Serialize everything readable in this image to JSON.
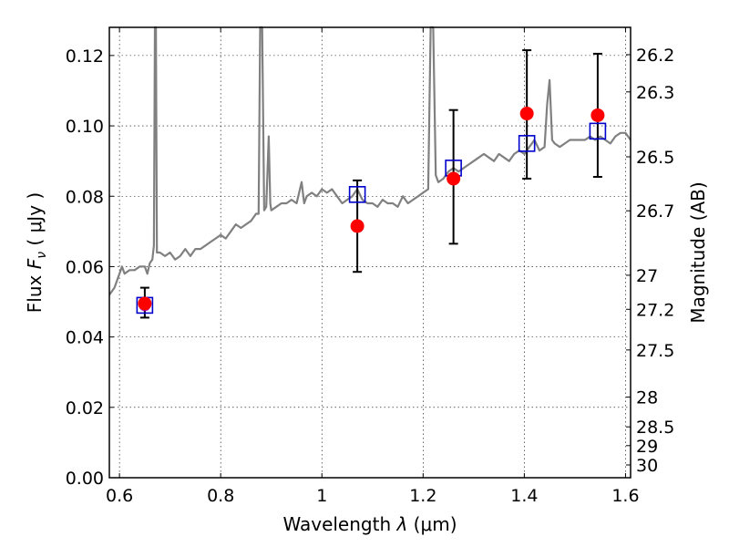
{
  "chart_data": {
    "type": "scatter",
    "title": "",
    "xlabel_prefix": "Wavelength  ",
    "xlabel_symbol": "λ",
    "xlabel_suffix": " (μm)",
    "ylabel_prefix": "Flux  ",
    "ylabel_symbol": "F",
    "ylabel_subscript": "ν",
    "ylabel_suffix": "  ( μJy )",
    "y2label": "Magnitude (AB)",
    "xlim": [
      0.58,
      1.61
    ],
    "ylim": [
      0.0,
      0.128
    ],
    "grid": true,
    "xticks": [
      {
        "value": 0.6,
        "label": "0.6"
      },
      {
        "value": 0.8,
        "label": "0.8"
      },
      {
        "value": 1.0,
        "label": "1"
      },
      {
        "value": 1.2,
        "label": "1.2"
      },
      {
        "value": 1.4,
        "label": "1.4"
      },
      {
        "value": 1.6,
        "label": "1.6"
      }
    ],
    "yticks": [
      {
        "value": 0.0,
        "label": "0.00"
      },
      {
        "value": 0.02,
        "label": "0.02"
      },
      {
        "value": 0.04,
        "label": "0.04"
      },
      {
        "value": 0.06,
        "label": "0.06"
      },
      {
        "value": 0.08,
        "label": "0.08"
      },
      {
        "value": 0.1,
        "label": "0.10"
      },
      {
        "value": 0.12,
        "label": "0.12"
      }
    ],
    "magnitude_ticks": [
      {
        "mag": 26.2,
        "label": "26.2"
      },
      {
        "mag": 26.3,
        "label": "26.3"
      },
      {
        "mag": 26.5,
        "label": "26.5"
      },
      {
        "mag": 26.7,
        "label": "26.7"
      },
      {
        "mag": 27.0,
        "label": "27"
      },
      {
        "mag": 27.2,
        "label": "27.2"
      },
      {
        "mag": 27.5,
        "label": "27.5"
      },
      {
        "mag": 28.0,
        "label": "28"
      },
      {
        "mag": 28.5,
        "label": "28.5"
      },
      {
        "mag": 29.0,
        "label": "29"
      },
      {
        "mag": 30.0,
        "label": "30"
      }
    ],
    "series": [
      {
        "kind": "line",
        "color": "#808080",
        "points": [
          [
            0.58,
            0.052
          ],
          [
            0.59,
            0.054
          ],
          [
            0.6,
            0.058
          ],
          [
            0.605,
            0.06
          ],
          [
            0.61,
            0.058
          ],
          [
            0.62,
            0.059
          ],
          [
            0.63,
            0.059
          ],
          [
            0.64,
            0.06
          ],
          [
            0.65,
            0.06
          ],
          [
            0.655,
            0.058
          ],
          [
            0.66,
            0.061
          ],
          [
            0.665,
            0.062
          ],
          [
            0.668,
            0.066
          ],
          [
            0.67,
            0.128
          ],
          [
            0.672,
            0.128
          ],
          [
            0.674,
            0.064
          ],
          [
            0.68,
            0.064
          ],
          [
            0.69,
            0.063
          ],
          [
            0.7,
            0.064
          ],
          [
            0.71,
            0.062
          ],
          [
            0.72,
            0.063
          ],
          [
            0.73,
            0.065
          ],
          [
            0.74,
            0.063
          ],
          [
            0.75,
            0.065
          ],
          [
            0.76,
            0.065
          ],
          [
            0.77,
            0.066
          ],
          [
            0.78,
            0.067
          ],
          [
            0.79,
            0.068
          ],
          [
            0.8,
            0.069
          ],
          [
            0.81,
            0.068
          ],
          [
            0.82,
            0.07
          ],
          [
            0.83,
            0.072
          ],
          [
            0.84,
            0.071
          ],
          [
            0.85,
            0.072
          ],
          [
            0.86,
            0.073
          ],
          [
            0.87,
            0.075
          ],
          [
            0.875,
            0.075
          ],
          [
            0.878,
            0.128
          ],
          [
            0.882,
            0.128
          ],
          [
            0.886,
            0.076
          ],
          [
            0.89,
            0.077
          ],
          [
            0.895,
            0.097
          ],
          [
            0.898,
            0.078
          ],
          [
            0.9,
            0.076
          ],
          [
            0.91,
            0.077
          ],
          [
            0.92,
            0.078
          ],
          [
            0.93,
            0.078
          ],
          [
            0.94,
            0.079
          ],
          [
            0.95,
            0.078
          ],
          [
            0.96,
            0.084
          ],
          [
            0.965,
            0.078
          ],
          [
            0.97,
            0.08
          ],
          [
            0.98,
            0.081
          ],
          [
            0.99,
            0.08
          ],
          [
            1.0,
            0.082
          ],
          [
            1.01,
            0.081
          ],
          [
            1.02,
            0.082
          ],
          [
            1.03,
            0.08
          ],
          [
            1.04,
            0.078
          ],
          [
            1.05,
            0.079
          ],
          [
            1.06,
            0.08
          ],
          [
            1.07,
            0.082
          ],
          [
            1.08,
            0.079
          ],
          [
            1.09,
            0.078
          ],
          [
            1.1,
            0.078
          ],
          [
            1.11,
            0.077
          ],
          [
            1.12,
            0.079
          ],
          [
            1.13,
            0.078
          ],
          [
            1.14,
            0.078
          ],
          [
            1.15,
            0.077
          ],
          [
            1.16,
            0.08
          ],
          [
            1.17,
            0.078
          ],
          [
            1.18,
            0.079
          ],
          [
            1.19,
            0.08
          ],
          [
            1.2,
            0.081
          ],
          [
            1.21,
            0.082
          ],
          [
            1.215,
            0.128
          ],
          [
            1.22,
            0.128
          ],
          [
            1.225,
            0.086
          ],
          [
            1.23,
            0.084
          ],
          [
            1.24,
            0.085
          ],
          [
            1.25,
            0.087
          ],
          [
            1.26,
            0.088
          ],
          [
            1.27,
            0.087
          ],
          [
            1.28,
            0.088
          ],
          [
            1.29,
            0.089
          ],
          [
            1.3,
            0.09
          ],
          [
            1.31,
            0.091
          ],
          [
            1.32,
            0.092
          ],
          [
            1.33,
            0.091
          ],
          [
            1.34,
            0.09
          ],
          [
            1.35,
            0.092
          ],
          [
            1.36,
            0.091
          ],
          [
            1.37,
            0.09
          ],
          [
            1.38,
            0.092
          ],
          [
            1.39,
            0.093
          ],
          [
            1.4,
            0.092
          ],
          [
            1.41,
            0.094
          ],
          [
            1.42,
            0.096
          ],
          [
            1.43,
            0.093
          ],
          [
            1.44,
            0.094
          ],
          [
            1.445,
            0.106
          ],
          [
            1.45,
            0.113
          ],
          [
            1.455,
            0.096
          ],
          [
            1.46,
            0.095
          ],
          [
            1.47,
            0.094
          ],
          [
            1.48,
            0.095
          ],
          [
            1.49,
            0.096
          ],
          [
            1.5,
            0.096
          ],
          [
            1.51,
            0.096
          ],
          [
            1.52,
            0.096
          ],
          [
            1.53,
            0.097
          ],
          [
            1.54,
            0.096
          ],
          [
            1.55,
            0.097
          ],
          [
            1.56,
            0.096
          ],
          [
            1.57,
            0.095
          ],
          [
            1.58,
            0.097
          ],
          [
            1.59,
            0.098
          ],
          [
            1.6,
            0.098
          ],
          [
            1.61,
            0.096
          ]
        ]
      },
      {
        "kind": "points",
        "marker": "circle",
        "color": "#ff0000",
        "points": [
          {
            "x": 0.65,
            "y": 0.0495,
            "yerr_low": 0.0455,
            "yerr_high": 0.054
          },
          {
            "x": 1.07,
            "y": 0.0715,
            "yerr_low": 0.0585,
            "yerr_high": 0.0845
          },
          {
            "x": 1.26,
            "y": 0.085,
            "yerr_low": 0.0665,
            "yerr_high": 0.1045
          },
          {
            "x": 1.405,
            "y": 0.1035,
            "yerr_low": 0.085,
            "yerr_high": 0.1215
          },
          {
            "x": 1.545,
            "y": 0.103,
            "yerr_low": 0.0855,
            "yerr_high": 0.1205
          }
        ]
      },
      {
        "kind": "points",
        "marker": "square-open",
        "color": "#0000cc",
        "points": [
          {
            "x": 0.65,
            "y": 0.049
          },
          {
            "x": 1.07,
            "y": 0.0805
          },
          {
            "x": 1.26,
            "y": 0.088
          },
          {
            "x": 1.405,
            "y": 0.095
          },
          {
            "x": 1.545,
            "y": 0.0985
          }
        ]
      }
    ]
  }
}
